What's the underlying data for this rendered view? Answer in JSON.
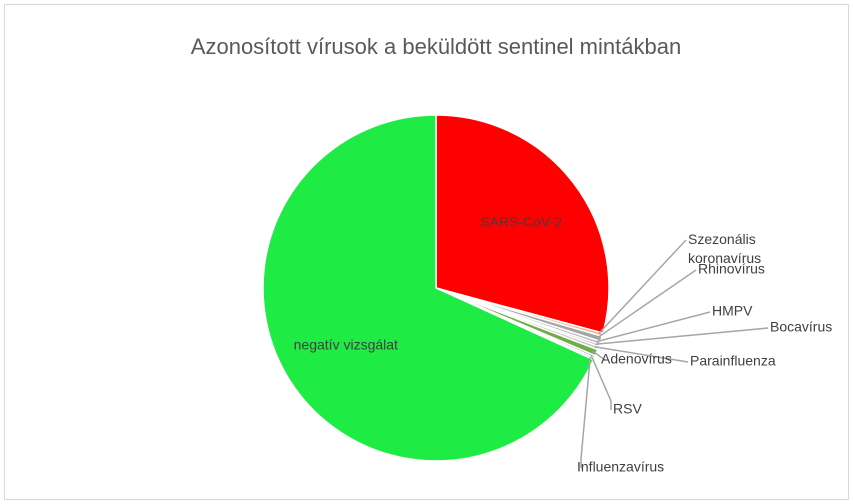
{
  "chart_data": {
    "type": "pie",
    "title": "Azonosított vírusok a beküldött sentinel mintákban",
    "categories": [
      "SARS-CoV-2",
      "Szezonális koronavírus",
      "Rhinovírus",
      "HMPV",
      "Bocavírus",
      "Parainfluenza",
      "Adenovírus",
      "RSV",
      "Influenzavírus",
      "negatív vizsgálat"
    ],
    "values": [
      29.2,
      0.3,
      0.5,
      0.3,
      0.2,
      0.3,
      0.6,
      0.2,
      0.2,
      68.2
    ],
    "colors": [
      "#ff0000",
      "#f4b183",
      "#a5a5a5",
      "#bfbfbf",
      "#9e9e9e",
      "#c9c9c9",
      "#70ad47",
      "#8faadc",
      "#d9d9d9",
      "#1eeb44"
    ]
  }
}
